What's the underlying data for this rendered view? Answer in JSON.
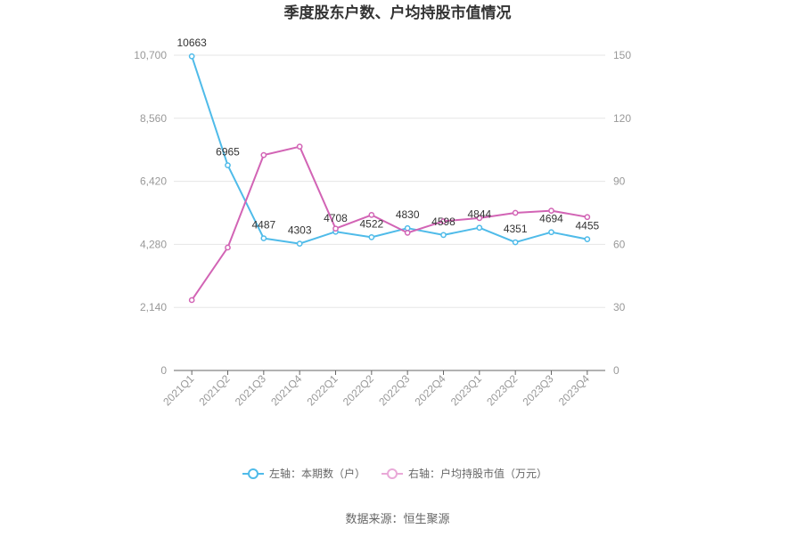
{
  "chart_data": {
    "type": "line",
    "title": "季度股东户数、户均持股市值情况",
    "categories": [
      "2021Q1",
      "2021Q2",
      "2021Q3",
      "2021Q4",
      "2022Q1",
      "2022Q2",
      "2022Q3",
      "2022Q4",
      "2023Q1",
      "2023Q2",
      "2023Q3",
      "2023Q4"
    ],
    "left_axis": {
      "ticks": [
        "0",
        "2,140",
        "4,280",
        "6,420",
        "8,560",
        "10,700"
      ],
      "ylim": [
        0,
        10700
      ]
    },
    "right_axis": {
      "ticks": [
        "0",
        "30",
        "60",
        "90",
        "120",
        "150"
      ],
      "ylim": [
        0,
        150
      ]
    },
    "series": [
      {
        "name": "左轴：本期数（户）",
        "axis": "left",
        "color": "#4fbbe9",
        "values": [
          10663,
          6965,
          4487,
          4303,
          4708,
          4522,
          4830,
          4598,
          4844,
          4351,
          4694,
          4455
        ],
        "labels": [
          "10663",
          "6965",
          "4487",
          "4303",
          "4708",
          "4522",
          "4830",
          "4598",
          "4844",
          "4351",
          "4694",
          "4455"
        ]
      },
      {
        "name": "右轴：户均持股市值（万元）",
        "axis": "right",
        "color": "#d264b5",
        "values": [
          33.5,
          58.5,
          102.5,
          106.5,
          67.5,
          74.0,
          65.5,
          71.0,
          72.5,
          75.0,
          76.0,
          73.0
        ]
      }
    ],
    "grid": true,
    "legend_position": "bottom",
    "source": "数据来源：恒生聚源"
  }
}
